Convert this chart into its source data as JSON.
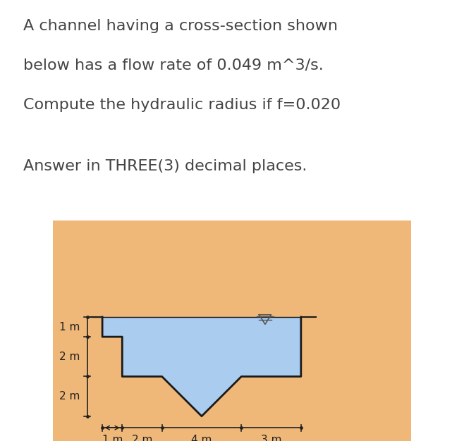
{
  "title_lines": [
    "A channel having a cross-section shown",
    "below has a flow rate of 0.049 m³/s.",
    "Compute the hydraulic radius if f=0.020"
  ],
  "subtitle": "Answer in THREE(3) decimal places.",
  "bg_color": "#f0b878",
  "water_color": "#aaccee",
  "channel_edge_color": "#1a1a1a",
  "text_color": "#444444",
  "annotation_color": "#222222",
  "title_fontsize": 16,
  "subtitle_fontsize": 16,
  "dim_fontsize": 11,
  "water_level_symbol_color": "#555555",
  "scale": 0.72
}
